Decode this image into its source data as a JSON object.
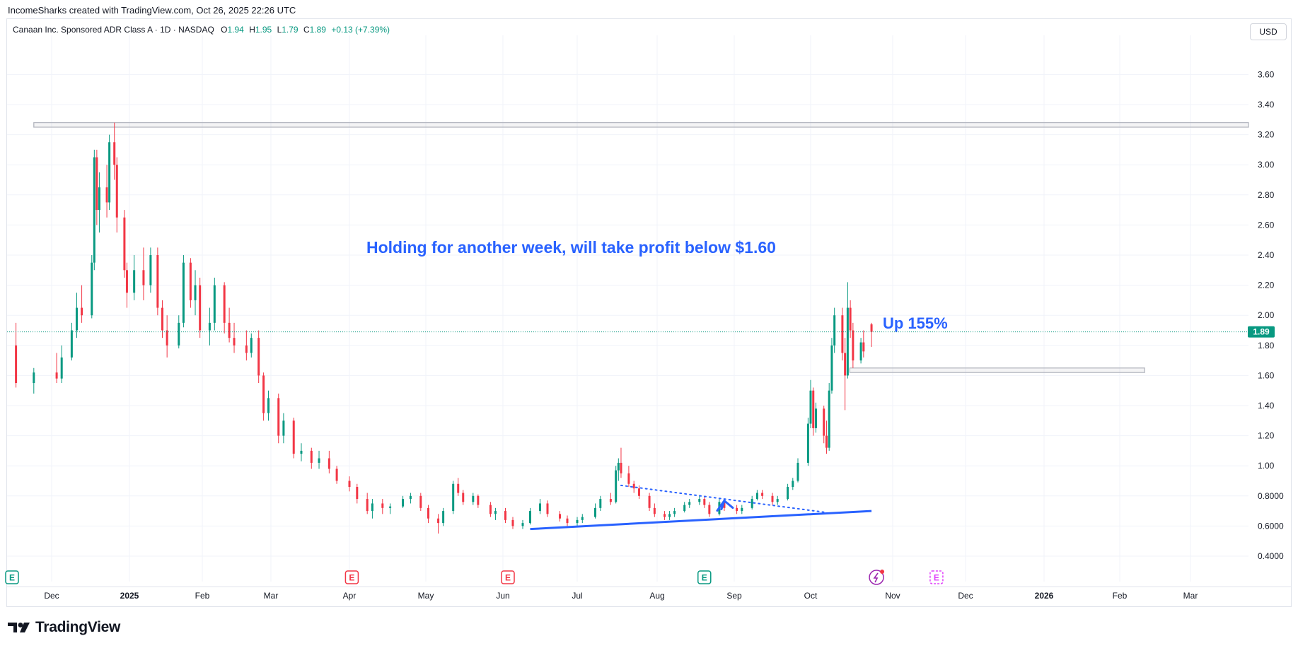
{
  "header": {
    "attribution": "IncomeSharks created with TradingView.com, Oct 26, 2025 22:26 UTC",
    "symbol": "Canaan Inc. Sponsored ADR Class A · 1D · NASDAQ",
    "o_label": "O",
    "o_value": "1.94",
    "h_label": "H",
    "h_value": "1.95",
    "l_label": "L",
    "l_value": "1.79",
    "c_label": "C",
    "c_value": "1.89",
    "change": "+0.13 (+7.39%)",
    "currency_button": "USD"
  },
  "footer": {
    "brand": "TradingView"
  },
  "colors": {
    "up": "#089981",
    "down": "#f23645",
    "annotation": "#2962ff",
    "grid": "#f0f3fa",
    "axis_text": "#131722",
    "price_tag": "#089981"
  },
  "chart_data": {
    "type": "candlestick",
    "symbol": "Canaan Inc. Sponsored ADR Class A",
    "interval": "1D",
    "exchange": "NASDAQ",
    "currency": "USD",
    "ylim": [
      0.35,
      3.8
    ],
    "y_ticks": [
      "3.60",
      "3.40",
      "3.20",
      "3.00",
      "2.80",
      "2.60",
      "2.40",
      "2.20",
      "2.00",
      "1.80",
      "1.60",
      "1.40",
      "1.20",
      "1.00",
      "0.8000",
      "0.6000",
      "0.4000"
    ],
    "x_ticks": [
      "Dec",
      "2025",
      "Feb",
      "Mar",
      "Apr",
      "May",
      "Jun",
      "Jul",
      "Aug",
      "Sep",
      "Oct",
      "Nov",
      "Dec",
      "2026",
      "Feb",
      "Mar"
    ],
    "last_price": "1.89",
    "candles": [
      {
        "date": "2024-11-27",
        "o": 1.8,
        "h": 1.95,
        "l": 1.52,
        "c": 1.55
      },
      {
        "date": "2024-11-29",
        "o": 1.55,
        "h": 1.65,
        "l": 1.48,
        "c": 1.62
      },
      {
        "date": "2024-12-03",
        "o": 1.62,
        "h": 1.75,
        "l": 1.55,
        "c": 1.58
      },
      {
        "date": "2024-12-05",
        "o": 1.58,
        "h": 1.8,
        "l": 1.55,
        "c": 1.72
      },
      {
        "date": "2024-12-09",
        "o": 1.72,
        "h": 1.95,
        "l": 1.7,
        "c": 1.9
      },
      {
        "date": "2024-12-11",
        "o": 1.9,
        "h": 2.15,
        "l": 1.85,
        "c": 2.05
      },
      {
        "date": "2024-12-13",
        "o": 2.05,
        "h": 2.2,
        "l": 1.95,
        "c": 2.0
      },
      {
        "date": "2024-12-17",
        "o": 2.0,
        "h": 2.4,
        "l": 1.98,
        "c": 2.35
      },
      {
        "date": "2024-12-18",
        "o": 2.35,
        "h": 3.1,
        "l": 2.3,
        "c": 3.05
      },
      {
        "date": "2024-12-19",
        "o": 3.05,
        "h": 3.1,
        "l": 2.6,
        "c": 2.7
      },
      {
        "date": "2024-12-20",
        "o": 2.7,
        "h": 2.95,
        "l": 2.55,
        "c": 2.85
      },
      {
        "date": "2024-12-23",
        "o": 2.85,
        "h": 3.0,
        "l": 2.65,
        "c": 2.75
      },
      {
        "date": "2024-12-24",
        "o": 2.75,
        "h": 3.2,
        "l": 2.7,
        "c": 3.15
      },
      {
        "date": "2024-12-26",
        "o": 3.15,
        "h": 3.28,
        "l": 2.9,
        "c": 3.0
      },
      {
        "date": "2024-12-27",
        "o": 3.0,
        "h": 3.05,
        "l": 2.55,
        "c": 2.65
      },
      {
        "date": "2024-12-30",
        "o": 2.65,
        "h": 2.7,
        "l": 2.25,
        "c": 2.3
      },
      {
        "date": "2024-12-31",
        "o": 2.3,
        "h": 2.35,
        "l": 2.05,
        "c": 2.15
      },
      {
        "date": "2025-01-03",
        "o": 2.15,
        "h": 2.4,
        "l": 2.1,
        "c": 2.3
      },
      {
        "date": "2025-01-07",
        "o": 2.3,
        "h": 2.45,
        "l": 2.1,
        "c": 2.2
      },
      {
        "date": "2025-01-10",
        "o": 2.2,
        "h": 2.45,
        "l": 2.15,
        "c": 2.4
      },
      {
        "date": "2025-01-13",
        "o": 2.4,
        "h": 2.45,
        "l": 2.0,
        "c": 2.05
      },
      {
        "date": "2025-01-15",
        "o": 2.05,
        "h": 2.1,
        "l": 1.85,
        "c": 1.9
      },
      {
        "date": "2025-01-17",
        "o": 1.9,
        "h": 2.0,
        "l": 1.72,
        "c": 1.8
      },
      {
        "date": "2025-01-22",
        "o": 1.8,
        "h": 2.0,
        "l": 1.78,
        "c": 1.95
      },
      {
        "date": "2025-01-24",
        "o": 1.95,
        "h": 2.4,
        "l": 1.92,
        "c": 2.35
      },
      {
        "date": "2025-01-27",
        "o": 2.35,
        "h": 2.38,
        "l": 2.05,
        "c": 2.1
      },
      {
        "date": "2025-01-29",
        "o": 2.1,
        "h": 2.3,
        "l": 2.0,
        "c": 2.2
      },
      {
        "date": "2025-01-31",
        "o": 2.2,
        "h": 2.25,
        "l": 1.85,
        "c": 1.9
      },
      {
        "date": "2025-02-04",
        "o": 1.9,
        "h": 2.05,
        "l": 1.8,
        "c": 1.95
      },
      {
        "date": "2025-02-06",
        "o": 1.95,
        "h": 2.25,
        "l": 1.9,
        "c": 2.2
      },
      {
        "date": "2025-02-10",
        "o": 2.2,
        "h": 2.22,
        "l": 1.88,
        "c": 1.95
      },
      {
        "date": "2025-02-12",
        "o": 1.95,
        "h": 2.05,
        "l": 1.82,
        "c": 1.85
      },
      {
        "date": "2025-02-14",
        "o": 1.85,
        "h": 1.95,
        "l": 1.75,
        "c": 1.8
      },
      {
        "date": "2025-02-19",
        "o": 1.8,
        "h": 1.9,
        "l": 1.7,
        "c": 1.75
      },
      {
        "date": "2025-02-21",
        "o": 1.75,
        "h": 1.88,
        "l": 1.72,
        "c": 1.85
      },
      {
        "date": "2025-02-24",
        "o": 1.85,
        "h": 1.9,
        "l": 1.55,
        "c": 1.6
      },
      {
        "date": "2025-02-26",
        "o": 1.6,
        "h": 1.62,
        "l": 1.3,
        "c": 1.35
      },
      {
        "date": "2025-02-28",
        "o": 1.35,
        "h": 1.5,
        "l": 1.3,
        "c": 1.45
      },
      {
        "date": "2025-03-04",
        "o": 1.45,
        "h": 1.48,
        "l": 1.15,
        "c": 1.2
      },
      {
        "date": "2025-03-06",
        "o": 1.2,
        "h": 1.35,
        "l": 1.15,
        "c": 1.3
      },
      {
        "date": "2025-03-10",
        "o": 1.3,
        "h": 1.32,
        "l": 1.05,
        "c": 1.08
      },
      {
        "date": "2025-03-13",
        "o": 1.08,
        "h": 1.15,
        "l": 1.03,
        "c": 1.1
      },
      {
        "date": "2025-03-17",
        "o": 1.1,
        "h": 1.12,
        "l": 0.98,
        "c": 1.02
      },
      {
        "date": "2025-03-20",
        "o": 1.02,
        "h": 1.1,
        "l": 0.98,
        "c": 1.05
      },
      {
        "date": "2025-03-24",
        "o": 1.05,
        "h": 1.1,
        "l": 0.95,
        "c": 0.98
      },
      {
        "date": "2025-03-27",
        "o": 0.98,
        "h": 1.0,
        "l": 0.88,
        "c": 0.9
      },
      {
        "date": "2025-04-01",
        "o": 0.9,
        "h": 0.93,
        "l": 0.83,
        "c": 0.86
      },
      {
        "date": "2025-04-04",
        "o": 0.86,
        "h": 0.88,
        "l": 0.75,
        "c": 0.78
      },
      {
        "date": "2025-04-08",
        "o": 0.78,
        "h": 0.82,
        "l": 0.68,
        "c": 0.7
      },
      {
        "date": "2025-04-10",
        "o": 0.7,
        "h": 0.78,
        "l": 0.65,
        "c": 0.75
      },
      {
        "date": "2025-04-14",
        "o": 0.75,
        "h": 0.78,
        "l": 0.68,
        "c": 0.72
      },
      {
        "date": "2025-04-17",
        "o": 0.72,
        "h": 0.75,
        "l": 0.68,
        "c": 0.73
      },
      {
        "date": "2025-04-22",
        "o": 0.73,
        "h": 0.8,
        "l": 0.72,
        "c": 0.78
      },
      {
        "date": "2025-04-25",
        "o": 0.78,
        "h": 0.82,
        "l": 0.75,
        "c": 0.8
      },
      {
        "date": "2025-04-29",
        "o": 0.8,
        "h": 0.82,
        "l": 0.7,
        "c": 0.72
      },
      {
        "date": "2025-05-02",
        "o": 0.72,
        "h": 0.74,
        "l": 0.62,
        "c": 0.65
      },
      {
        "date": "2025-05-06",
        "o": 0.65,
        "h": 0.68,
        "l": 0.55,
        "c": 0.62
      },
      {
        "date": "2025-05-08",
        "o": 0.62,
        "h": 0.72,
        "l": 0.6,
        "c": 0.7
      },
      {
        "date": "2025-05-12",
        "o": 0.7,
        "h": 0.9,
        "l": 0.68,
        "c": 0.88
      },
      {
        "date": "2025-05-14",
        "o": 0.88,
        "h": 0.92,
        "l": 0.8,
        "c": 0.82
      },
      {
        "date": "2025-05-16",
        "o": 0.82,
        "h": 0.84,
        "l": 0.74,
        "c": 0.76
      },
      {
        "date": "2025-05-20",
        "o": 0.76,
        "h": 0.82,
        "l": 0.74,
        "c": 0.8
      },
      {
        "date": "2025-05-22",
        "o": 0.8,
        "h": 0.81,
        "l": 0.72,
        "c": 0.74
      },
      {
        "date": "2025-05-27",
        "o": 0.74,
        "h": 0.76,
        "l": 0.66,
        "c": 0.68
      },
      {
        "date": "2025-05-29",
        "o": 0.68,
        "h": 0.72,
        "l": 0.64,
        "c": 0.7
      },
      {
        "date": "2025-06-02",
        "o": 0.7,
        "h": 0.72,
        "l": 0.62,
        "c": 0.64
      },
      {
        "date": "2025-06-05",
        "o": 0.64,
        "h": 0.66,
        "l": 0.58,
        "c": 0.6
      },
      {
        "date": "2025-06-09",
        "o": 0.6,
        "h": 0.64,
        "l": 0.58,
        "c": 0.62
      },
      {
        "date": "2025-06-12",
        "o": 0.62,
        "h": 0.72,
        "l": 0.61,
        "c": 0.7
      },
      {
        "date": "2025-06-16",
        "o": 0.7,
        "h": 0.78,
        "l": 0.68,
        "c": 0.75
      },
      {
        "date": "2025-06-19",
        "o": 0.75,
        "h": 0.77,
        "l": 0.66,
        "c": 0.68
      },
      {
        "date": "2025-06-24",
        "o": 0.68,
        "h": 0.7,
        "l": 0.63,
        "c": 0.65
      },
      {
        "date": "2025-06-27",
        "o": 0.65,
        "h": 0.67,
        "l": 0.6,
        "c": 0.62
      },
      {
        "date": "2025-07-01",
        "o": 0.62,
        "h": 0.66,
        "l": 0.6,
        "c": 0.64
      },
      {
        "date": "2025-07-03",
        "o": 0.64,
        "h": 0.68,
        "l": 0.62,
        "c": 0.66
      },
      {
        "date": "2025-07-08",
        "o": 0.66,
        "h": 0.75,
        "l": 0.65,
        "c": 0.72
      },
      {
        "date": "2025-07-10",
        "o": 0.72,
        "h": 0.8,
        "l": 0.7,
        "c": 0.78
      },
      {
        "date": "2025-07-14",
        "o": 0.78,
        "h": 0.82,
        "l": 0.74,
        "c": 0.76
      },
      {
        "date": "2025-07-16",
        "o": 0.76,
        "h": 1.0,
        "l": 0.75,
        "c": 0.97
      },
      {
        "date": "2025-07-17",
        "o": 0.97,
        "h": 1.05,
        "l": 0.9,
        "c": 1.02
      },
      {
        "date": "2025-07-18",
        "o": 1.02,
        "h": 1.12,
        "l": 0.92,
        "c": 0.95
      },
      {
        "date": "2025-07-21",
        "o": 0.95,
        "h": 1.0,
        "l": 0.86,
        "c": 0.88
      },
      {
        "date": "2025-07-23",
        "o": 0.88,
        "h": 0.9,
        "l": 0.82,
        "c": 0.85
      },
      {
        "date": "2025-07-25",
        "o": 0.85,
        "h": 0.87,
        "l": 0.78,
        "c": 0.8
      },
      {
        "date": "2025-07-29",
        "o": 0.8,
        "h": 0.82,
        "l": 0.7,
        "c": 0.72
      },
      {
        "date": "2025-07-31",
        "o": 0.72,
        "h": 0.75,
        "l": 0.66,
        "c": 0.68
      },
      {
        "date": "2025-08-04",
        "o": 0.68,
        "h": 0.7,
        "l": 0.64,
        "c": 0.66
      },
      {
        "date": "2025-08-06",
        "o": 0.66,
        "h": 0.7,
        "l": 0.64,
        "c": 0.68
      },
      {
        "date": "2025-08-08",
        "o": 0.68,
        "h": 0.72,
        "l": 0.66,
        "c": 0.7
      },
      {
        "date": "2025-08-12",
        "o": 0.7,
        "h": 0.76,
        "l": 0.69,
        "c": 0.74
      },
      {
        "date": "2025-08-14",
        "o": 0.74,
        "h": 0.78,
        "l": 0.72,
        "c": 0.76
      },
      {
        "date": "2025-08-18",
        "o": 0.76,
        "h": 0.8,
        "l": 0.74,
        "c": 0.78
      },
      {
        "date": "2025-08-20",
        "o": 0.78,
        "h": 0.8,
        "l": 0.72,
        "c": 0.74
      },
      {
        "date": "2025-08-22",
        "o": 0.74,
        "h": 0.76,
        "l": 0.66,
        "c": 0.68
      },
      {
        "date": "2025-08-26",
        "o": 0.68,
        "h": 0.78,
        "l": 0.67,
        "c": 0.76
      },
      {
        "date": "2025-08-28",
        "o": 0.76,
        "h": 0.78,
        "l": 0.7,
        "c": 0.72
      },
      {
        "date": "2025-09-02",
        "o": 0.72,
        "h": 0.74,
        "l": 0.68,
        "c": 0.7
      },
      {
        "date": "2025-09-04",
        "o": 0.7,
        "h": 0.74,
        "l": 0.68,
        "c": 0.72
      },
      {
        "date": "2025-09-08",
        "o": 0.72,
        "h": 0.8,
        "l": 0.71,
        "c": 0.78
      },
      {
        "date": "2025-09-10",
        "o": 0.78,
        "h": 0.84,
        "l": 0.77,
        "c": 0.82
      },
      {
        "date": "2025-09-12",
        "o": 0.82,
        "h": 0.84,
        "l": 0.78,
        "c": 0.8
      },
      {
        "date": "2025-09-16",
        "o": 0.8,
        "h": 0.82,
        "l": 0.74,
        "c": 0.76
      },
      {
        "date": "2025-09-18",
        "o": 0.76,
        "h": 0.8,
        "l": 0.74,
        "c": 0.78
      },
      {
        "date": "2025-09-22",
        "o": 0.78,
        "h": 0.88,
        "l": 0.77,
        "c": 0.86
      },
      {
        "date": "2025-09-24",
        "o": 0.86,
        "h": 0.92,
        "l": 0.84,
        "c": 0.9
      },
      {
        "date": "2025-09-26",
        "o": 0.9,
        "h": 1.05,
        "l": 0.89,
        "c": 1.02
      },
      {
        "date": "2025-09-30",
        "o": 1.02,
        "h": 1.32,
        "l": 1.0,
        "c": 1.28
      },
      {
        "date": "2025-10-01",
        "o": 1.28,
        "h": 1.57,
        "l": 1.25,
        "c": 1.5
      },
      {
        "date": "2025-10-02",
        "o": 1.5,
        "h": 1.52,
        "l": 1.2,
        "c": 1.25
      },
      {
        "date": "2025-10-03",
        "o": 1.25,
        "h": 1.42,
        "l": 1.22,
        "c": 1.38
      },
      {
        "date": "2025-10-06",
        "o": 1.38,
        "h": 1.4,
        "l": 1.15,
        "c": 1.2
      },
      {
        "date": "2025-10-07",
        "o": 1.2,
        "h": 1.3,
        "l": 1.08,
        "c": 1.12
      },
      {
        "date": "2025-10-08",
        "o": 1.12,
        "h": 1.55,
        "l": 1.1,
        "c": 1.5
      },
      {
        "date": "2025-10-09",
        "o": 1.5,
        "h": 1.85,
        "l": 1.48,
        "c": 1.8
      },
      {
        "date": "2025-10-10",
        "o": 1.8,
        "h": 2.05,
        "l": 1.75,
        "c": 2.0
      },
      {
        "date": "2025-10-13",
        "o": 2.0,
        "h": 2.05,
        "l": 1.7,
        "c": 1.75
      },
      {
        "date": "2025-10-14",
        "o": 1.75,
        "h": 1.85,
        "l": 1.37,
        "c": 1.6
      },
      {
        "date": "2025-10-15",
        "o": 1.6,
        "h": 2.22,
        "l": 1.58,
        "c": 2.05
      },
      {
        "date": "2025-10-16",
        "o": 2.05,
        "h": 2.1,
        "l": 1.85,
        "c": 1.9
      },
      {
        "date": "2025-10-17",
        "o": 1.9,
        "h": 1.95,
        "l": 1.65,
        "c": 1.7
      },
      {
        "date": "2025-10-20",
        "o": 1.7,
        "h": 1.85,
        "l": 1.68,
        "c": 1.82
      },
      {
        "date": "2025-10-21",
        "o": 1.82,
        "h": 1.9,
        "l": 1.72,
        "c": 1.76
      },
      {
        "date": "2025-10-24",
        "o": 1.94,
        "h": 1.95,
        "l": 1.79,
        "c": 1.89
      }
    ],
    "annotations": {
      "main_text": "Holding for another week, will take profit below $1.60",
      "up_text": "Up 155%",
      "resistance_zone": {
        "from": "2024-11-29",
        "to": "2026-03-20",
        "top": 3.28,
        "bottom": 3.25
      },
      "stop_zone": {
        "from": "2025-10-15",
        "to": "2026-02-10",
        "top": 1.65,
        "bottom": 1.62
      },
      "trendline": {
        "start": [
          "2025-06-12",
          0.58
        ],
        "end": [
          "2025-10-24",
          0.7
        ]
      },
      "dotted_line": {
        "start": [
          "2025-07-18",
          0.87
        ],
        "end": [
          "2025-10-07",
          0.69
        ]
      }
    },
    "event_markers": [
      {
        "date": "2024-11-25",
        "type": "earnings",
        "color": "#089981"
      },
      {
        "date": "2025-03-31",
        "type": "earnings",
        "color": "#f23645"
      },
      {
        "date": "2025-06-01",
        "type": "earnings",
        "color": "#f23645"
      },
      {
        "date": "2025-08-18",
        "type": "earnings",
        "color": "#089981"
      },
      {
        "date": "2025-10-24",
        "type": "flash",
        "color": "#9c27b0"
      },
      {
        "date": "2025-11-17",
        "type": "earnings-upcoming",
        "color": "#e040fb"
      }
    ]
  }
}
